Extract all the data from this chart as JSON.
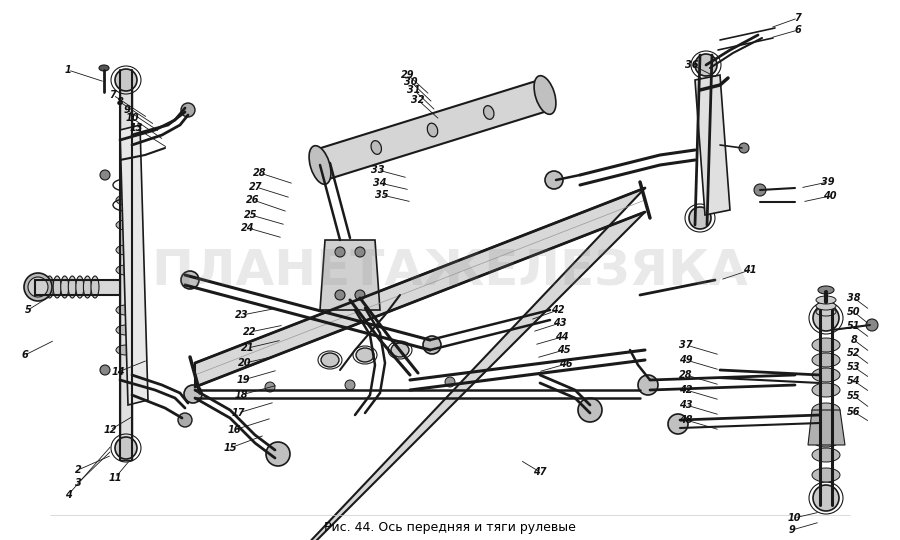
{
  "caption": "Рис. 44. Ось передняя и тяги рулевые",
  "caption_fontsize": 9,
  "background_color": "#ffffff",
  "text_color": "#000000",
  "fig_width": 9.0,
  "fig_height": 5.4,
  "dpi": 100
}
